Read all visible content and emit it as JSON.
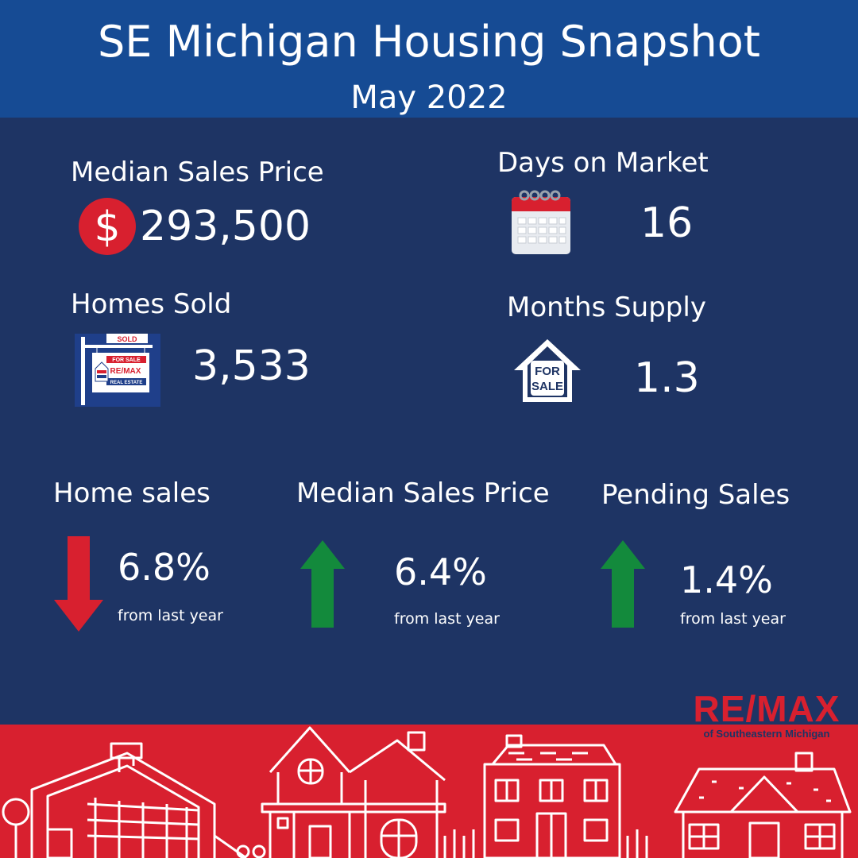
{
  "header": {
    "title": "SE Michigan Housing Snapshot",
    "subtitle": "May 2022"
  },
  "stats": {
    "median_price": {
      "label": "Median Sales Price",
      "value": "293,500",
      "icon": "dollar-icon"
    },
    "days_on_market": {
      "label": "Days on Market",
      "value": "16",
      "icon": "calendar-icon"
    },
    "homes_sold": {
      "label": "Homes Sold",
      "value": "3,533",
      "icon": "sold-sign-icon",
      "sign_top": "SOLD",
      "sign_mid": "FOR SALE",
      "sign_brand": "RE/MAX",
      "sign_bottom": "REAL ESTATE"
    },
    "months_supply": {
      "label": "Months Supply",
      "value": "1.3",
      "icon": "for-sale-house-icon",
      "house_text_1": "FOR",
      "house_text_2": "SALE"
    }
  },
  "changes": [
    {
      "label": "Home sales",
      "value": "6.8%",
      "note": "from last year",
      "direction": "down",
      "color": "#d8202f"
    },
    {
      "label": "Median Sales Price",
      "value": "6.4%",
      "note": "from last year",
      "direction": "up",
      "color": "#138a3c"
    },
    {
      "label": "Pending Sales",
      "value": "1.4%",
      "note": "from last year",
      "direction": "up",
      "color": "#138a3c"
    }
  ],
  "branding": {
    "logo_main": "RE/MAX",
    "logo_sub": "of Southeastern Michigan"
  },
  "colors": {
    "background": "#1e3464",
    "header": "#164b94",
    "accent_red": "#d8202f",
    "accent_green": "#138a3c"
  }
}
